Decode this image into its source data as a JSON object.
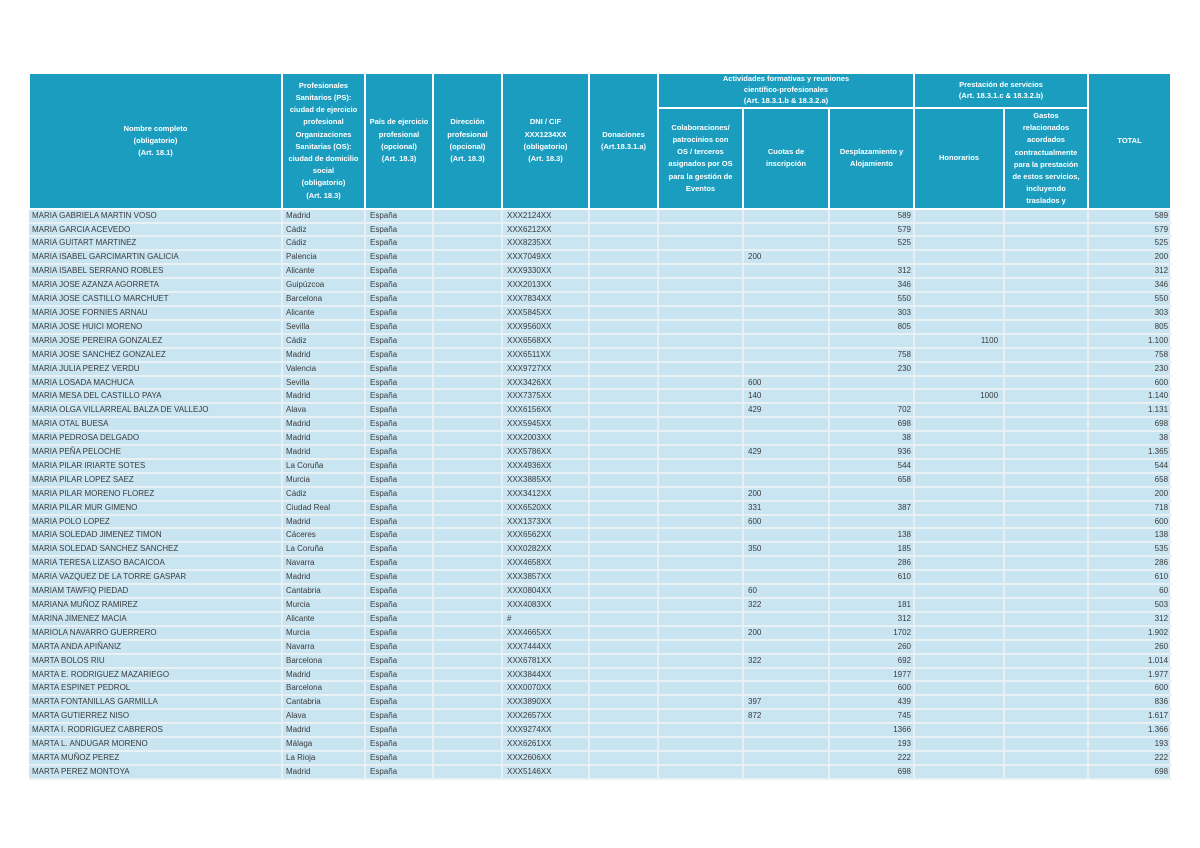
{
  "colors": {
    "header_bg": "#1A9DBE",
    "header_text": "#FFFFFF",
    "row_bg": "#C9E5F2",
    "grid_line": "#EAF1F5",
    "body_text": "#3A3A3A"
  },
  "table": {
    "group_headers": {
      "actividades": "Actividades formativas y reuniones\ncientífico-profesionales\n(Art. 18.3.1.b & 18.3.2.a)",
      "prestacion": "Prestación de servicios\n(Art. 18.3.1.c & 18.3.2.b)"
    },
    "headers": {
      "nombre": "Nombre completo\n(obligatorio)\n(Art. 18.1)",
      "ciudad": "Profesionales\nSanitarios (PS):\nciudad de ejercicio\nprofesional\nOrganizaciones\nSanitarias (OS):\nciudad de domicilio\nsocial\n(obligatorio)\n(Art. 18.3)",
      "pais": "País de ejercicio\nprofesional\n(opcional)\n(Art. 18.3)",
      "direccion": "Dirección\nprofesional\n(opcional)\n(Art. 18.3)",
      "dni": "DNI / CIF\nXXX1234XX\n(obligatorio)\n(Art. 18.3)",
      "donaciones": "Donaciones\n(Art.18.3.1.a)",
      "colaboraciones": "Colaboraciones/\npatrocinios con\nOS / terceros\nasignados por OS\npara la gestión de\nEventos",
      "cuotas": "Cuotas de\ninscripción",
      "desplazamiento": "Desplazamiento y\nAlojamiento",
      "honorarios": "Honorarios",
      "gastos": "Gastos\nrelacionados\nacordados\ncontractualmente\npara la prestación\nde estos servicios,\nincluyendo\ntraslados y",
      "total": "TOTAL"
    },
    "column_keys": [
      "name",
      "city",
      "country",
      "address",
      "dni",
      "donaciones",
      "colaboraciones",
      "cuotas",
      "desplazamiento",
      "honorarios",
      "gastos",
      "total"
    ],
    "rows": [
      [
        "MARIA GABRIELA MARTIN VOSO",
        "Madrid",
        "España",
        "",
        "XXX2124XX",
        "",
        "",
        "",
        "589",
        "",
        "",
        "589"
      ],
      [
        "MARIA GARCIA ACEVEDO",
        "Cádiz",
        "España",
        "",
        "XXX6212XX",
        "",
        "",
        "",
        "579",
        "",
        "",
        "579"
      ],
      [
        "MARIA GUITART MARTINEZ",
        "Cádiz",
        "España",
        "",
        "XXX8235XX",
        "",
        "",
        "",
        "525",
        "",
        "",
        "525"
      ],
      [
        "MARIA ISABEL GARCIMARTIN GALICIA",
        "Palencia",
        "España",
        "",
        "XXX7049XX",
        "",
        "",
        "200",
        "",
        "",
        "",
        "200"
      ],
      [
        "MARIA ISABEL SERRANO ROBLES",
        "Alicante",
        "España",
        "",
        "XXX9330XX",
        "",
        "",
        "",
        "312",
        "",
        "",
        "312"
      ],
      [
        "MARIA JOSE AZANZA AGORRETA",
        "Guipúzcoa",
        "España",
        "",
        "XXX2013XX",
        "",
        "",
        "",
        "346",
        "",
        "",
        "346"
      ],
      [
        "MARIA JOSE CASTILLO MARCHUET",
        "Barcelona",
        "España",
        "",
        "XXX7834XX",
        "",
        "",
        "",
        "550",
        "",
        "",
        "550"
      ],
      [
        "MARIA JOSE FORNIES ARNAU",
        "Alicante",
        "España",
        "",
        "XXX5845XX",
        "",
        "",
        "",
        "303",
        "",
        "",
        "303"
      ],
      [
        "MARIA JOSE HUICI MORENO",
        "Sevilla",
        "España",
        "",
        "XXX9560XX",
        "",
        "",
        "",
        "805",
        "",
        "",
        "805"
      ],
      [
        "MARIA JOSE PEREIRA GONZALEZ",
        "Cádiz",
        "España",
        "",
        "XXX6568XX",
        "",
        "",
        "",
        "",
        "1100",
        "",
        "1.100"
      ],
      [
        "MARIA JOSE SANCHEZ GONZALEZ",
        "Madrid",
        "España",
        "",
        "XXX6511XX",
        "",
        "",
        "",
        "758",
        "",
        "",
        "758"
      ],
      [
        "MARIA JULIA PEREZ VERDU",
        "Valencia",
        "España",
        "",
        "XXX9727XX",
        "",
        "",
        "",
        "230",
        "",
        "",
        "230"
      ],
      [
        "MARIA LOSADA MACHUCA",
        "Sevilla",
        "España",
        "",
        "XXX3426XX",
        "",
        "",
        "600",
        "",
        "",
        "",
        "600"
      ],
      [
        "MARIA MESA DEL CASTILLO PAYA",
        "Madrid",
        "España",
        "",
        "XXX7375XX",
        "",
        "",
        "140",
        "",
        "1000",
        "",
        "1.140"
      ],
      [
        "MARIA OLGA VILLARREAL BALZA DE VALLEJO",
        "Alava",
        "España",
        "",
        "XXX6156XX",
        "",
        "",
        "429",
        "702",
        "",
        "",
        "1.131"
      ],
      [
        "MARIA OTAL BUESA",
        "Madrid",
        "España",
        "",
        "XXX5945XX",
        "",
        "",
        "",
        "698",
        "",
        "",
        "698"
      ],
      [
        "MARIA PEDROSA DELGADO",
        "Madrid",
        "España",
        "",
        "XXX2003XX",
        "",
        "",
        "",
        "38",
        "",
        "",
        "38"
      ],
      [
        "MARIA PEÑA PELOCHE",
        "Madrid",
        "España",
        "",
        "XXX5786XX",
        "",
        "",
        "429",
        "936",
        "",
        "",
        "1.365"
      ],
      [
        "MARIA PILAR IRIARTE SOTES",
        "La Coruña",
        "España",
        "",
        "XXX4936XX",
        "",
        "",
        "",
        "544",
        "",
        "",
        "544"
      ],
      [
        "MARIA PILAR LOPEZ SAEZ",
        "Murcia",
        "España",
        "",
        "XXX3885XX",
        "",
        "",
        "",
        "658",
        "",
        "",
        "658"
      ],
      [
        "MARIA PILAR MORENO FLOREZ",
        "Cádiz",
        "España",
        "",
        "XXX3412XX",
        "",
        "",
        "200",
        "",
        "",
        "",
        "200"
      ],
      [
        "MARIA PILAR MUR GIMENO",
        "Ciudad Real",
        "España",
        "",
        "XXX6520XX",
        "",
        "",
        "331",
        "387",
        "",
        "",
        "718"
      ],
      [
        "MARIA POLO LOPEZ",
        "Madrid",
        "España",
        "",
        "XXX1373XX",
        "",
        "",
        "600",
        "",
        "",
        "",
        "600"
      ],
      [
        "MARIA SOLEDAD JIMENEZ TIMON",
        "Cáceres",
        "España",
        "",
        "XXX6562XX",
        "",
        "",
        "",
        "138",
        "",
        "",
        "138"
      ],
      [
        "MARIA SOLEDAD SANCHEZ SANCHEZ",
        "La Coruña",
        "España",
        "",
        "XXX0282XX",
        "",
        "",
        "350",
        "185",
        "",
        "",
        "535"
      ],
      [
        "MARIA TERESA LIZASO BACAICOA",
        "Navarra",
        "España",
        "",
        "XXX4658XX",
        "",
        "",
        "",
        "286",
        "",
        "",
        "286"
      ],
      [
        "MARIA VAZQUEZ DE LA TORRE GASPAR",
        "Madrid",
        "España",
        "",
        "XXX3857XX",
        "",
        "",
        "",
        "610",
        "",
        "",
        "610"
      ],
      [
        "MARIAM TAWFIQ PIEDAD",
        "Cantabria",
        "España",
        "",
        "XXX0804XX",
        "",
        "",
        "60",
        "",
        "",
        "",
        "60"
      ],
      [
        "MARIANA MUÑOZ RAMIREZ",
        "Murcia",
        "España",
        "",
        "XXX4083XX",
        "",
        "",
        "322",
        "181",
        "",
        "",
        "503"
      ],
      [
        "MARINA JIMENEZ MACIA",
        "Alicante",
        "España",
        "",
        "#",
        "",
        "",
        "",
        "312",
        "",
        "",
        "312"
      ],
      [
        "MARIOLA NAVARRO GUERRERO",
        "Murcia",
        "España",
        "",
        "XXX4665XX",
        "",
        "",
        "200",
        "1702",
        "",
        "",
        "1.902"
      ],
      [
        "MARTA ANDA APIÑANIZ",
        "Navarra",
        "España",
        "",
        "XXX7444XX",
        "",
        "",
        "",
        "260",
        "",
        "",
        "260"
      ],
      [
        "MARTA BOLOS RIU",
        "Barcelona",
        "España",
        "",
        "XXX6781XX",
        "",
        "",
        "322",
        "692",
        "",
        "",
        "1.014"
      ],
      [
        "MARTA E. RODRIGUEZ MAZARIEGO",
        "Madrid",
        "España",
        "",
        "XXX3844XX",
        "",
        "",
        "",
        "1977",
        "",
        "",
        "1.977"
      ],
      [
        "MARTA ESPINET PEDROL",
        "Barcelona",
        "España",
        "",
        "XXX0070XX",
        "",
        "",
        "",
        "600",
        "",
        "",
        "600"
      ],
      [
        "MARTA FONTANILLAS GARMILLA",
        "Cantabria",
        "España",
        "",
        "XXX3890XX",
        "",
        "",
        "397",
        "439",
        "",
        "",
        "836"
      ],
      [
        "MARTA GUTIERREZ NISO",
        "Alava",
        "España",
        "",
        "XXX2657XX",
        "",
        "",
        "872",
        "745",
        "",
        "",
        "1.617"
      ],
      [
        "MARTA I. RODRIGUEZ CABREROS",
        "Madrid",
        "España",
        "",
        "XXX9274XX",
        "",
        "",
        "",
        "1366",
        "",
        "",
        "1.366"
      ],
      [
        "MARTA L. ANDUGAR MORENO",
        "Málaga",
        "España",
        "",
        "XXX6261XX",
        "",
        "",
        "",
        "193",
        "",
        "",
        "193"
      ],
      [
        "MARTA MUÑOZ PEREZ",
        "La Rioja",
        "España",
        "",
        "XXX2606XX",
        "",
        "",
        "",
        "222",
        "",
        "",
        "222"
      ],
      [
        "MARTA PEREZ MONTOYA",
        "Madrid",
        "España",
        "",
        "XXX5146XX",
        "",
        "",
        "",
        "698",
        "",
        "",
        "698"
      ]
    ]
  }
}
